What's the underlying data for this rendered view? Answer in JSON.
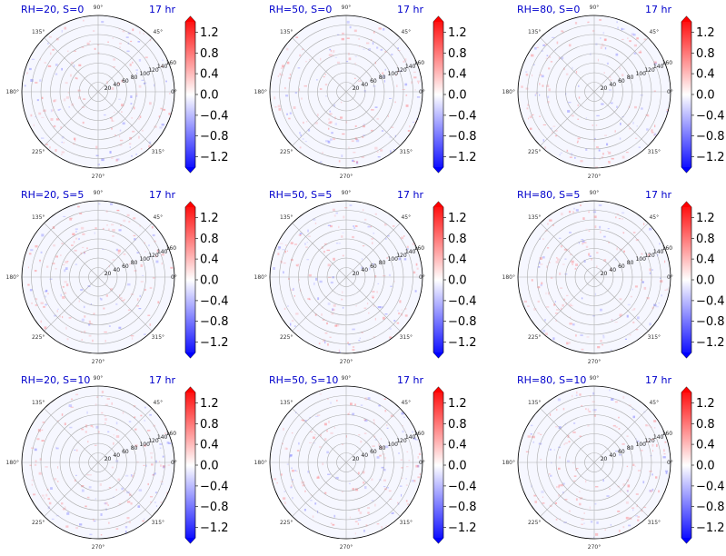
{
  "figure": {
    "colorbar": {
      "ticks": [
        "1.2",
        "0.8",
        "0.4",
        "0.0",
        "−0.4",
        "−0.8",
        "−1.2"
      ],
      "tick_values": [
        1.2,
        0.8,
        0.4,
        0.0,
        -0.4,
        -0.8,
        -1.2
      ],
      "range": [
        -1.4,
        1.4
      ],
      "colormap": "bwr",
      "colors": {
        "low": "#0000ff",
        "mid": "#ffffff",
        "high": "#ff0000"
      }
    },
    "angle_ticks": [
      "90°",
      "45°",
      "0°",
      "135°",
      "180°",
      "225°",
      "270°",
      "315°"
    ],
    "radial_ticks": [
      "20",
      "40",
      "60",
      "80",
      "100",
      "120",
      "140",
      "160"
    ],
    "title_color": "#0000cc"
  },
  "chart_data": [
    {
      "type": "heatmap",
      "projection": "polar",
      "title": "RH=20, S=0",
      "time_label": "17 hr",
      "rlim": [
        0,
        160
      ],
      "clim": [
        -1.4,
        1.4
      ],
      "colormap": "bwr",
      "grid": true,
      "field": "mostly near-zero values with scattered weak positive and negative speckles"
    },
    {
      "type": "heatmap",
      "projection": "polar",
      "title": "RH=50, S=0",
      "time_label": "17 hr",
      "rlim": [
        0,
        160
      ],
      "clim": [
        -1.4,
        1.4
      ],
      "colormap": "bwr",
      "grid": true,
      "field": "mostly near-zero values with scattered weak positive and negative speckles"
    },
    {
      "type": "heatmap",
      "projection": "polar",
      "title": "RH=80, S=0",
      "time_label": "17 hr",
      "rlim": [
        0,
        160
      ],
      "clim": [
        -1.4,
        1.4
      ],
      "colormap": "bwr",
      "grid": true,
      "field": "mostly near-zero values with scattered weak positive and negative speckles"
    },
    {
      "type": "heatmap",
      "projection": "polar",
      "title": "RH=20, S=5",
      "time_label": "17 hr",
      "rlim": [
        0,
        160
      ],
      "clim": [
        -1.4,
        1.4
      ],
      "colormap": "bwr",
      "grid": true,
      "field": "mostly near-zero values with scattered weak positive and negative speckles"
    },
    {
      "type": "heatmap",
      "projection": "polar",
      "title": "RH=50, S=5",
      "time_label": "17 hr",
      "rlim": [
        0,
        160
      ],
      "clim": [
        -1.4,
        1.4
      ],
      "colormap": "bwr",
      "grid": true,
      "field": "mostly near-zero values with scattered weak positive and negative speckles"
    },
    {
      "type": "heatmap",
      "projection": "polar",
      "title": "RH=80, S=5",
      "time_label": "17 hr",
      "rlim": [
        0,
        160
      ],
      "clim": [
        -1.4,
        1.4
      ],
      "colormap": "bwr",
      "grid": true,
      "field": "mostly near-zero values with scattered weak positive and negative speckles"
    },
    {
      "type": "heatmap",
      "projection": "polar",
      "title": "RH=20, S=10",
      "time_label": "17 hr",
      "rlim": [
        0,
        160
      ],
      "clim": [
        -1.4,
        1.4
      ],
      "colormap": "bwr",
      "grid": true,
      "field": "mostly near-zero values with scattered weak positive and negative speckles"
    },
    {
      "type": "heatmap",
      "projection": "polar",
      "title": "RH=50, S=10",
      "time_label": "17 hr",
      "rlim": [
        0,
        160
      ],
      "clim": [
        -1.4,
        1.4
      ],
      "colormap": "bwr",
      "grid": true,
      "field": "mostly near-zero values with scattered weak positive and negative speckles"
    },
    {
      "type": "heatmap",
      "projection": "polar",
      "title": "RH=80, S=10",
      "time_label": "17 hr",
      "rlim": [
        0,
        160
      ],
      "clim": [
        -1.4,
        1.4
      ],
      "colormap": "bwr",
      "grid": true,
      "field": "mostly near-zero values with scattered weak positive and negative speckles"
    }
  ]
}
